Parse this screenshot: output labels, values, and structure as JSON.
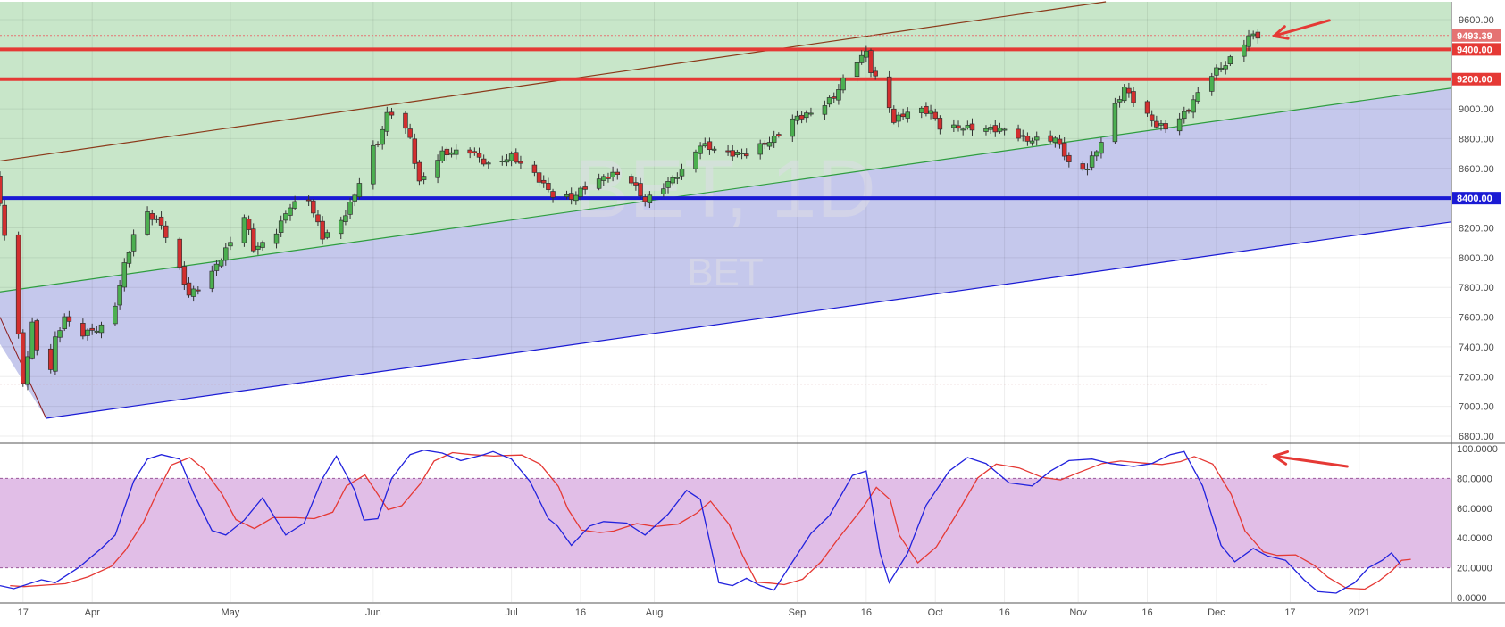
{
  "watermark": {
    "symbol_interval": "BET, 1D",
    "symbol": "BET"
  },
  "colors": {
    "up_candle": "#4caf50",
    "down_candle": "#d32f2f",
    "channel_upper_fill": "#c8e6c9",
    "channel_lower_fill": "#c5c8ec",
    "stoch_band_fill": "#e1bee7",
    "resistance": "#e53935",
    "support": "#1a1ad4",
    "k_line": "#2222dd",
    "d_line": "#e53935",
    "arrow": "#e53935",
    "last_price_tag": "#e57373"
  },
  "price_axis": {
    "ticks": [
      "9600.00",
      "9400.00",
      "9200.00",
      "9000.00",
      "8800.00",
      "8600.00",
      "8400.00",
      "8200.00",
      "8000.00",
      "7800.00",
      "7600.00",
      "7400.00",
      "7200.00",
      "7000.00",
      "6800.00"
    ],
    "tags": [
      {
        "label": "9493.39",
        "value": 9493.39,
        "kind": "last"
      },
      {
        "label": "9400.00",
        "value": 9400,
        "kind": "resistance"
      },
      {
        "label": "9200.00",
        "value": 9200,
        "kind": "resistance"
      },
      {
        "label": "8400.00",
        "value": 8400,
        "kind": "support"
      }
    ]
  },
  "stoch_axis": {
    "ticks": [
      "100.0000",
      "80.0000",
      "60.0000",
      "40.0000",
      "20.0000",
      "0.0000"
    ]
  },
  "time_axis": {
    "labels": [
      {
        "label": "17",
        "date": "2020-03-17"
      },
      {
        "label": "Apr",
        "date": "2020-04-01"
      },
      {
        "label": "May",
        "date": "2020-05-01"
      },
      {
        "label": "Jun",
        "date": "2020-06-01"
      },
      {
        "label": "Jul",
        "date": "2020-07-01"
      },
      {
        "label": "16",
        "date": "2020-07-16"
      },
      {
        "label": "Aug",
        "date": "2020-08-01"
      },
      {
        "label": "Sep",
        "date": "2020-09-01"
      },
      {
        "label": "16",
        "date": "2020-09-16"
      },
      {
        "label": "Oct",
        "date": "2020-10-01"
      },
      {
        "label": "16",
        "date": "2020-10-16"
      },
      {
        "label": "Nov",
        "date": "2020-11-01"
      },
      {
        "label": "16",
        "date": "2020-11-16"
      },
      {
        "label": "Dec",
        "date": "2020-12-01"
      },
      {
        "label": "17",
        "date": "2020-12-17"
      },
      {
        "label": "2021",
        "date": "2021-01-01"
      }
    ]
  },
  "chart_data": {
    "type": "candlestick",
    "x_start": "2020-03-12",
    "x_end": "2021-01-21",
    "ylim": [
      6770,
      9720
    ],
    "stoch_ylim": [
      -3,
      103
    ],
    "horizontal_levels": [
      {
        "value": 9400,
        "role": "resistance"
      },
      {
        "value": 9200,
        "role": "resistance"
      },
      {
        "value": 8400,
        "role": "support"
      }
    ],
    "channel_lines": [
      {
        "name": "outer_top",
        "color": "#2e9d3f",
        "points": [
          [
            "2020-03-12",
            9930
          ],
          [
            "2020-04-17",
            10300
          ]
        ]
      },
      {
        "name": "upper_parallel",
        "color": "#8b3a1a",
        "points": [
          [
            "2020-03-12",
            8650
          ],
          [
            "2020-11-07",
            9720
          ]
        ]
      },
      {
        "name": "middle",
        "color": "#2e9d3f",
        "points": [
          [
            "2020-03-12",
            7770
          ],
          [
            "2021-01-21",
            9140
          ]
        ]
      },
      {
        "name": "lower",
        "color": "#1a1ad4",
        "points": [
          [
            "2020-03-22",
            6920
          ],
          [
            "2021-01-21",
            8240
          ]
        ]
      }
    ],
    "close_anchors": [
      [
        "2020-03-12",
        8350
      ],
      [
        "2020-03-15",
        7800
      ],
      [
        "2020-03-17",
        7150
      ],
      [
        "2020-03-19",
        7550
      ],
      [
        "2020-03-22",
        7060
      ],
      [
        "2020-03-24",
        7450
      ],
      [
        "2020-03-26",
        7600
      ],
      [
        "2020-03-29",
        7480
      ],
      [
        "2020-04-02",
        7520
      ],
      [
        "2020-04-05",
        7550
      ],
      [
        "2020-04-08",
        7950
      ],
      [
        "2020-04-10",
        8150
      ],
      [
        "2020-04-13",
        8300
      ],
      [
        "2020-04-16",
        8220
      ],
      [
        "2020-04-19",
        8000
      ],
      [
        "2020-04-22",
        7750
      ],
      [
        "2020-04-26",
        7850
      ],
      [
        "2020-04-30",
        8050
      ],
      [
        "2020-05-04",
        8280
      ],
      [
        "2020-05-06",
        8060
      ],
      [
        "2020-05-10",
        8120
      ],
      [
        "2020-05-14",
        8350
      ],
      [
        "2020-05-18",
        8390
      ],
      [
        "2020-05-21",
        8140
      ],
      [
        "2020-05-25",
        8240
      ],
      [
        "2020-05-28",
        8420
      ],
      [
        "2020-05-31",
        8700
      ],
      [
        "2020-06-02",
        8770
      ],
      [
        "2020-06-04",
        8960
      ],
      [
        "2020-06-06",
        8990
      ],
      [
        "2020-06-09",
        8800
      ],
      [
        "2020-06-11",
        8500
      ],
      [
        "2020-06-13",
        8600
      ],
      [
        "2020-06-16",
        8700
      ],
      [
        "2020-06-22",
        8720
      ],
      [
        "2020-06-26",
        8620
      ],
      [
        "2020-07-01",
        8680
      ],
      [
        "2020-07-06",
        8560
      ],
      [
        "2020-07-10",
        8420
      ],
      [
        "2020-07-14",
        8400
      ],
      [
        "2020-07-18",
        8500
      ],
      [
        "2020-07-23",
        8560
      ],
      [
        "2020-07-26",
        8560
      ],
      [
        "2020-07-30",
        8380
      ],
      [
        "2020-08-03",
        8480
      ],
      [
        "2020-08-07",
        8580
      ],
      [
        "2020-08-11",
        8760
      ],
      [
        "2020-08-17",
        8700
      ],
      [
        "2020-08-21",
        8700
      ],
      [
        "2020-08-27",
        8800
      ],
      [
        "2020-08-31",
        8930
      ],
      [
        "2020-09-04",
        8970
      ],
      [
        "2020-09-09",
        9080
      ],
      [
        "2020-09-13",
        9300
      ],
      [
        "2020-09-16",
        9380
      ],
      [
        "2020-09-17",
        9260
      ],
      [
        "2020-09-20",
        9100
      ],
      [
        "2020-09-22",
        8920
      ],
      [
        "2020-09-26",
        9000
      ],
      [
        "2020-09-30",
        8980
      ],
      [
        "2020-10-02",
        8880
      ],
      [
        "2020-10-10",
        8870
      ],
      [
        "2020-10-16",
        8860
      ],
      [
        "2020-10-21",
        8790
      ],
      [
        "2020-10-27",
        8800
      ],
      [
        "2020-10-29",
        8700
      ],
      [
        "2020-10-31",
        8560
      ],
      [
        "2020-11-03",
        8610
      ],
      [
        "2020-11-06",
        8780
      ],
      [
        "2020-11-08",
        8960
      ],
      [
        "2020-11-11",
        9140
      ],
      [
        "2020-11-14",
        9020
      ],
      [
        "2020-11-18",
        8890
      ],
      [
        "2020-11-21",
        8870
      ],
      [
        "2020-11-25",
        9000
      ],
      [
        "2020-11-29",
        9210
      ],
      [
        "2020-12-01",
        9260
      ],
      [
        "2020-12-03",
        9300
      ],
      [
        "2020-12-06",
        9400
      ],
      [
        "2020-12-08",
        9490
      ],
      [
        "2020-12-10",
        9493.39
      ]
    ],
    "stoch_k": [
      [
        "2020-03-12",
        8
      ],
      [
        "2020-03-15",
        6
      ],
      [
        "2020-03-21",
        12
      ],
      [
        "2020-03-24",
        10
      ],
      [
        "2020-03-29",
        20
      ],
      [
        "2020-04-03",
        33
      ],
      [
        "2020-04-06",
        42
      ],
      [
        "2020-04-10",
        78
      ],
      [
        "2020-04-13",
        93
      ],
      [
        "2020-04-16",
        96
      ],
      [
        "2020-04-20",
        93
      ],
      [
        "2020-04-23",
        70
      ],
      [
        "2020-04-27",
        45
      ],
      [
        "2020-04-30",
        42
      ],
      [
        "2020-05-04",
        52
      ],
      [
        "2020-05-08",
        67
      ],
      [
        "2020-05-13",
        42
      ],
      [
        "2020-05-17",
        50
      ],
      [
        "2020-05-21",
        80
      ],
      [
        "2020-05-24",
        95
      ],
      [
        "2020-05-28",
        72
      ],
      [
        "2020-05-30",
        52
      ],
      [
        "2020-06-02",
        53
      ],
      [
        "2020-06-05",
        80
      ],
      [
        "2020-06-09",
        96
      ],
      [
        "2020-06-12",
        99
      ],
      [
        "2020-06-16",
        97
      ],
      [
        "2020-06-20",
        92
      ],
      [
        "2020-06-25",
        96
      ],
      [
        "2020-06-27",
        98
      ],
      [
        "2020-07-01",
        93
      ],
      [
        "2020-07-05",
        78
      ],
      [
        "2020-07-09",
        53
      ],
      [
        "2020-07-11",
        48
      ],
      [
        "2020-07-14",
        35
      ],
      [
        "2020-07-18",
        48
      ],
      [
        "2020-07-21",
        51
      ],
      [
        "2020-07-26",
        50
      ],
      [
        "2020-07-30",
        42
      ],
      [
        "2020-08-04",
        56
      ],
      [
        "2020-08-08",
        72
      ],
      [
        "2020-08-11",
        66
      ],
      [
        "2020-08-15",
        10
      ],
      [
        "2020-08-18",
        8
      ],
      [
        "2020-08-21",
        13
      ],
      [
        "2020-08-24",
        8
      ],
      [
        "2020-08-27",
        5
      ],
      [
        "2020-08-31",
        24
      ],
      [
        "2020-09-04",
        43
      ],
      [
        "2020-09-08",
        55
      ],
      [
        "2020-09-13",
        82
      ],
      [
        "2020-09-16",
        85
      ],
      [
        "2020-09-19",
        30
      ],
      [
        "2020-09-21",
        10
      ],
      [
        "2020-09-25",
        30
      ],
      [
        "2020-09-29",
        62
      ],
      [
        "2020-10-04",
        85
      ],
      [
        "2020-10-08",
        94
      ],
      [
        "2020-10-12",
        90
      ],
      [
        "2020-10-17",
        77
      ],
      [
        "2020-10-22",
        75
      ],
      [
        "2020-10-26",
        85
      ],
      [
        "2020-10-30",
        92
      ],
      [
        "2020-11-04",
        93
      ],
      [
        "2020-11-08",
        90
      ],
      [
        "2020-11-13",
        88
      ],
      [
        "2020-11-17",
        90
      ],
      [
        "2020-11-21",
        96
      ],
      [
        "2020-11-24",
        98
      ],
      [
        "2020-11-28",
        75
      ],
      [
        "2020-12-02",
        35
      ],
      [
        "2020-12-05",
        24
      ],
      [
        "2020-12-09",
        33
      ],
      [
        "2020-12-12",
        28
      ],
      [
        "2020-12-16",
        25
      ],
      [
        "2020-12-20",
        12
      ],
      [
        "2020-12-23",
        4
      ],
      [
        "2020-12-27",
        3
      ],
      [
        "2020-12-31",
        10
      ],
      [
        "2021-01-03",
        20
      ],
      [
        "2021-01-06",
        25
      ],
      [
        "2021-01-08",
        30
      ],
      [
        "2021-01-10",
        22
      ]
    ],
    "stoch_d": []
  },
  "annotations": [
    {
      "name": "price-arrow",
      "target": "last-candle"
    },
    {
      "name": "stoch-arrow",
      "target": "stoch-peak"
    }
  ]
}
